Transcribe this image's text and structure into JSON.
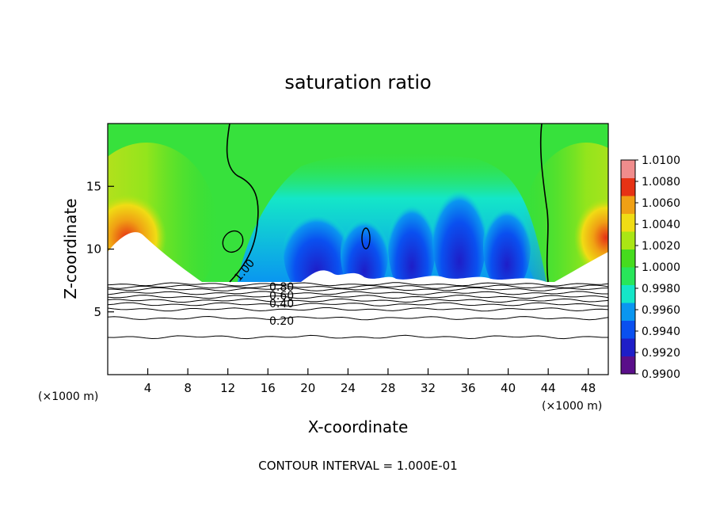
{
  "chart_data": {
    "type": "heatmap",
    "title": "saturation ratio",
    "xlabel": "X-coordinate",
    "ylabel": "Z-coordinate",
    "x_unit_label": "(×1000 m)",
    "x_unit_label_right": "(×1000 m)",
    "xlim": [
      0,
      50
    ],
    "ylim": [
      0,
      20
    ],
    "x_ticks": [
      4,
      8,
      12,
      16,
      20,
      24,
      28,
      32,
      36,
      40,
      44,
      48
    ],
    "x_tick_labels": [
      "4",
      "8",
      "12",
      "16",
      "20",
      "24",
      "28",
      "32",
      "36",
      "40",
      "44",
      "48"
    ],
    "y_ticks": [
      5,
      10,
      15
    ],
    "y_tick_labels": [
      "5",
      "10",
      "15"
    ],
    "footer": "CONTOUR INTERVAL = 1.000E-01",
    "colorbar": {
      "min": 0.99,
      "max": 1.01,
      "labels": [
        "1.0100",
        "1.0080",
        "1.0060",
        "1.0040",
        "1.0020",
        "1.0000",
        "0.9980",
        "0.9960",
        "0.9940",
        "0.9920",
        "0.9900"
      ],
      "colors": [
        "#5a0f8a",
        "#1e1ec8",
        "#0a50f0",
        "#0a96f0",
        "#14e6c8",
        "#28e65a",
        "#46dc1e",
        "#aae614",
        "#f0dc14",
        "#f0a014",
        "#e63214",
        "#f08c8c"
      ]
    },
    "contour_lines": [
      {
        "label": "1.00",
        "level": 1.0
      },
      {
        "label": "0.80",
        "level": 0.8
      },
      {
        "label": "0.60",
        "level": 0.6
      },
      {
        "label": "0.40",
        "level": 0.4
      },
      {
        "label": "0.20",
        "level": 0.2
      }
    ],
    "low_level_contours_z": [
      7.2,
      7.0,
      6.8,
      6.5,
      6.2,
      5.9,
      5.6,
      5.2,
      4.5,
      3.0
    ],
    "grid": false,
    "legend": "colorbar right"
  }
}
